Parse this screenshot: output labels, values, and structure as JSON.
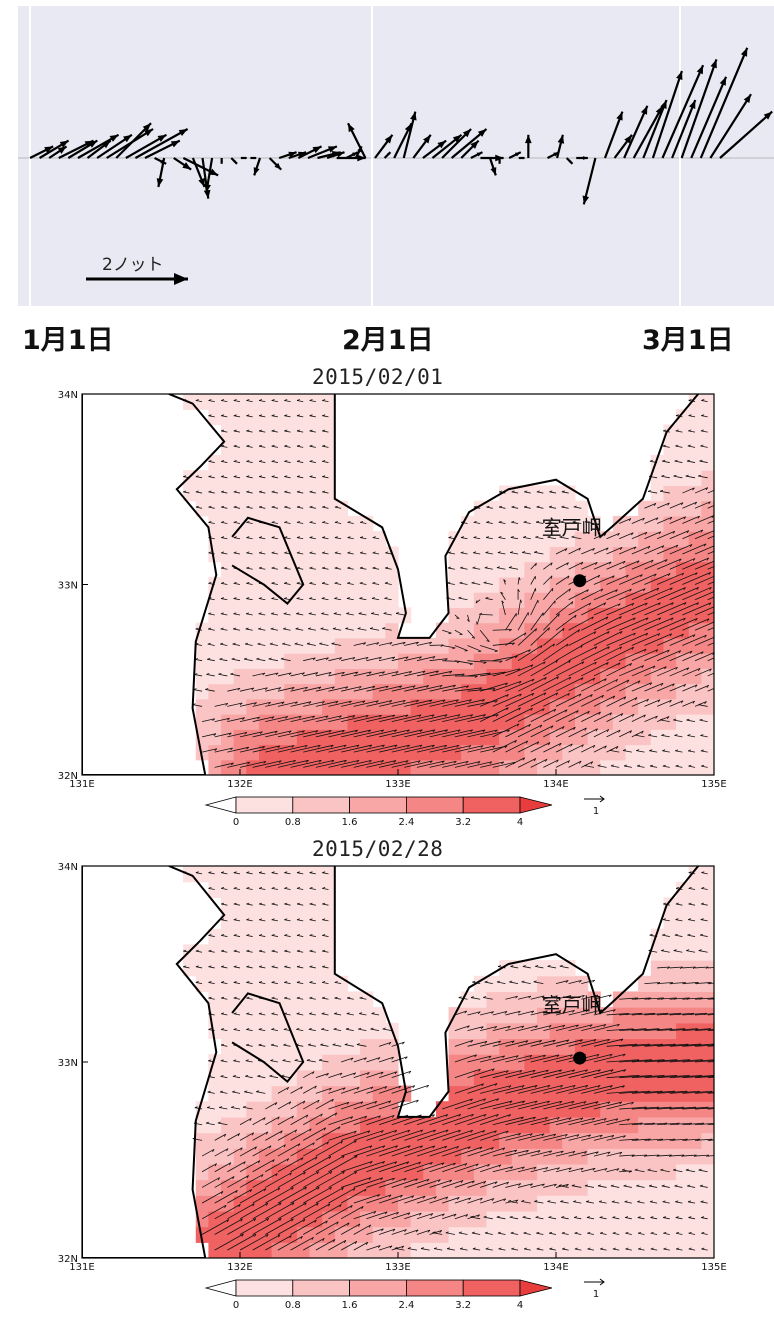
{
  "timeseries": {
    "date_labels": [
      "1月1日",
      "2月1日",
      "3月1日"
    ],
    "scale_label": "2ノット"
  },
  "chart_data": [
    {
      "type": "quiver_timeseries",
      "xlabel": "",
      "ylabel": "",
      "x_ticks": [
        "1月1日",
        "2月1日",
        "3月1日"
      ],
      "scale_key": {
        "label": "2ノット",
        "value": 2,
        "unit": "kt"
      },
      "grid": true,
      "series": [
        {
          "values": [
            [
              0.4,
              0.2
            ],
            [
              0.5,
              0.3
            ],
            [
              0.3,
              0.2
            ],
            [
              0.6,
              0.3
            ],
            [
              0.5,
              0.3
            ],
            [
              0.7,
              0.4
            ],
            [
              0.4,
              0.3
            ],
            [
              0.6,
              0.4
            ],
            [
              0.8,
              0.5
            ],
            [
              0.6,
              0.6
            ],
            [
              0.7,
              0.4
            ],
            [
              0.9,
              0.5
            ],
            [
              0.6,
              0.3
            ],
            [
              0.2,
              -0.1
            ],
            [
              -0.1,
              -0.5
            ],
            [
              0.3,
              -0.2
            ],
            [
              0.6,
              -0.3
            ],
            [
              0.2,
              -0.5
            ],
            [
              0.1,
              -0.7
            ],
            [
              -0.1,
              -0.6
            ],
            [
              0.0,
              -0.1
            ],
            [
              0.1,
              -0.1
            ],
            [
              0.1,
              0.0
            ],
            [
              0.1,
              0.0
            ],
            [
              -0.1,
              -0.3
            ],
            [
              0.2,
              -0.2
            ],
            [
              0.3,
              0.1
            ],
            [
              0.3,
              0.1
            ],
            [
              0.4,
              0.2
            ],
            [
              0.5,
              0.2
            ],
            [
              0.4,
              0.1
            ],
            [
              0.3,
              0.1
            ],
            [
              0.5,
              0.0
            ],
            [
              0.2,
              0.1
            ],
            [
              0.1,
              0.2
            ],
            [
              -0.3,
              0.6
            ],
            [
              0.3,
              0.4
            ],
            [
              0.1,
              0.1
            ],
            [
              0.3,
              0.6
            ],
            [
              0.2,
              0.8
            ],
            [
              0.3,
              0.4
            ],
            [
              0.4,
              0.3
            ],
            [
              0.5,
              0.4
            ],
            [
              0.5,
              0.5
            ],
            [
              0.6,
              0.5
            ],
            [
              0.3,
              0.3
            ],
            [
              0.2,
              0.1
            ],
            [
              0.4,
              0.0
            ],
            [
              0.1,
              -0.3
            ],
            [
              0.0,
              -0.1
            ],
            [
              0.2,
              0.1
            ],
            [
              0.1,
              0.0
            ],
            [
              0.0,
              0.4
            ],
            [
              0.0,
              0.0
            ],
            [
              0.2,
              0.1
            ],
            [
              0.1,
              0.4
            ],
            [
              0.1,
              -0.1
            ],
            [
              0.2,
              0.0
            ],
            [
              0.0,
              0.0
            ],
            [
              -0.2,
              -0.8
            ],
            [
              0.3,
              0.8
            ],
            [
              0.3,
              0.4
            ],
            [
              0.4,
              0.9
            ],
            [
              0.5,
              0.9
            ],
            [
              0.4,
              1.0
            ],
            [
              0.5,
              1.5
            ],
            [
              0.7,
              1.6
            ],
            [
              0.4,
              1.0
            ],
            [
              0.6,
              1.7
            ],
            [
              0.6,
              1.4
            ],
            [
              0.8,
              1.9
            ],
            [
              0.7,
              1.1
            ],
            [
              0.9,
              0.8
            ]
          ]
        }
      ]
    },
    {
      "type": "heatmap_vector_map",
      "title": "2015/02/01",
      "x_ticks": [
        "131E",
        "132E",
        "133E",
        "134E",
        "135E"
      ],
      "y_ticks": [
        "32N",
        "33N",
        "34N"
      ],
      "xlim": [
        131,
        135
      ],
      "ylim": [
        32,
        34
      ],
      "annotation": {
        "label": "室戸岬",
        "lon": 134.15,
        "lat": 33.02
      },
      "colorbar": {
        "ticks": [
          "0",
          "0.8",
          "1.6",
          "2.4",
          "3.2",
          "4"
        ],
        "colors": [
          "#ffffff",
          "#fde0e0",
          "#fbc4c4",
          "#f8a6a6",
          "#f48686",
          "#f06262",
          "#e93d3d"
        ]
      },
      "vector_key": {
        "label": "1",
        "value": 1
      },
      "field": {
        "jet_axis": [
          [
            132.2,
            32.0
          ],
          [
            133.5,
            32.3
          ],
          [
            134.3,
            32.7
          ],
          [
            135.0,
            33.0
          ]
        ],
        "jet_width": 0.3,
        "jet_peak": 3.4,
        "eddy": {
          "lon": 133.6,
          "lat": 32.8
        }
      }
    },
    {
      "type": "heatmap_vector_map",
      "title": "2015/02/28",
      "x_ticks": [
        "131E",
        "132E",
        "133E",
        "134E",
        "135E"
      ],
      "y_ticks": [
        "32N",
        "33N",
        "34N"
      ],
      "xlim": [
        131,
        135
      ],
      "ylim": [
        32,
        34
      ],
      "annotation": {
        "label": "室戸岬",
        "lon": 134.15,
        "lat": 33.02
      },
      "colorbar": {
        "ticks": [
          "0",
          "0.8",
          "1.6",
          "2.4",
          "3.2",
          "4"
        ],
        "colors": [
          "#ffffff",
          "#fde0e0",
          "#fbc4c4",
          "#f8a6a6",
          "#f48686",
          "#f06262",
          "#e93d3d"
        ]
      },
      "vector_key": {
        "label": "1",
        "value": 1
      },
      "field": {
        "jet_axis": [
          [
            131.8,
            32.0
          ],
          [
            132.6,
            32.45
          ],
          [
            133.5,
            32.75
          ],
          [
            134.3,
            32.95
          ],
          [
            135.0,
            33.0
          ]
        ],
        "jet_width": 0.28,
        "jet_peak": 3.6,
        "eddy": null
      }
    }
  ]
}
